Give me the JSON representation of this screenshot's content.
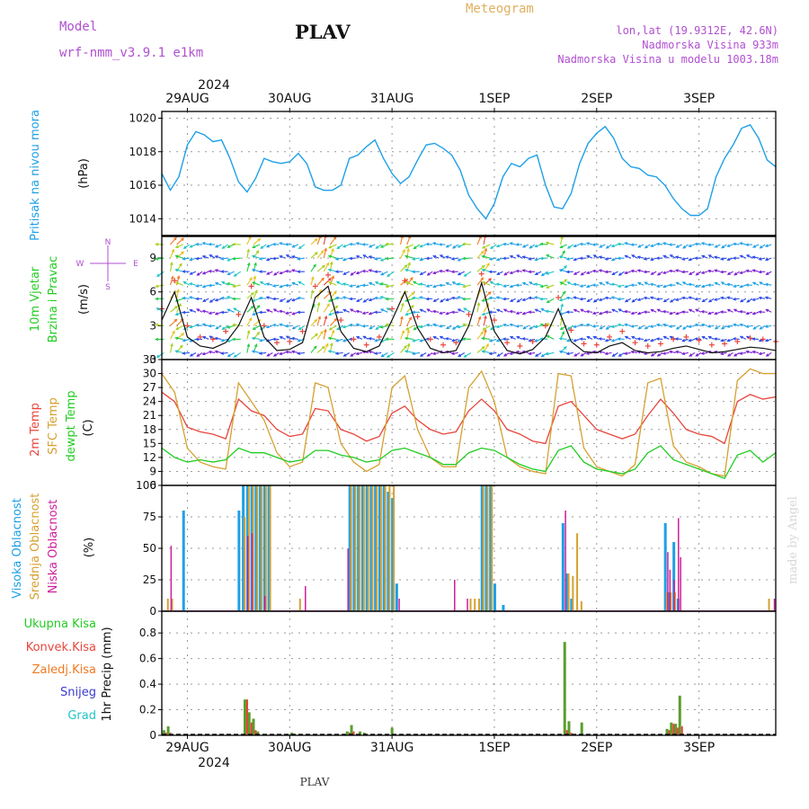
{
  "header": {
    "model_label": "Model",
    "model_name": "wrf-nmm_v3.9.1  e1km",
    "station": "PLAV",
    "meteogram": "Meteogram",
    "lonlat": "lon,lat (19.9312E, 42.6N)",
    "elevation": "Nadmorska Visina 933m",
    "model_elevation": "Nadmorska Visina u modelu 1003.18m",
    "year_top": "2024",
    "year_bottom": "2024",
    "footer_station": "PLAV",
    "credit": "made by Angel"
  },
  "colors": {
    "pressure": "#1ea0e6",
    "temp2m": "#e8453c",
    "sfc": "#d6a030",
    "dewpt": "#22cc22",
    "high_cloud": "#1ea0e6",
    "mid_cloud": "#d6a030",
    "low_cloud": "#cc1f99",
    "total_precip": "#5a9e2c",
    "conv_precip": "#e8453c",
    "frozen": "#f07a20",
    "snow": "#3a3ad0",
    "hail": "#22c4c4",
    "wind_mean": "#111111"
  },
  "chart_data": [
    {
      "type": "line",
      "panel": "pressure",
      "ylabel_left": "Pritisak na nivou mora",
      "ylabel_unit": "(hPa)",
      "categories": [
        "29AUG",
        "30AUG",
        "31AUG",
        "1SEP",
        "2SEP",
        "3SEP"
      ],
      "ylim": [
        1013,
        1020.4
      ],
      "yticks": [
        "1014",
        "1016",
        "1018",
        "1020"
      ],
      "x_range_hours": [
        0,
        144
      ],
      "series": [
        {
          "x": [
            0,
            2,
            4,
            6,
            8,
            10,
            12,
            14,
            16,
            18,
            20,
            22,
            24,
            26,
            28,
            30,
            32,
            34,
            36,
            38,
            40,
            42,
            44,
            46,
            48,
            50,
            52,
            54,
            56,
            58,
            60,
            62,
            64,
            66,
            68,
            70,
            72,
            74,
            76,
            78,
            80,
            82,
            84,
            86,
            88,
            90,
            92,
            94,
            96,
            98,
            100,
            102,
            104,
            106,
            108,
            110,
            112,
            114,
            116,
            118,
            120,
            122,
            124,
            126,
            128,
            130,
            132,
            134,
            136,
            138,
            140,
            142,
            144
          ],
          "values": [
            1016.7,
            1015.7,
            1016.5,
            1018.4,
            1019.2,
            1019.0,
            1018.6,
            1018.7,
            1017.6,
            1016.2,
            1015.6,
            1016.4,
            1017.6,
            1017.4,
            1017.3,
            1017.4,
            1017.9,
            1017.3,
            1015.9,
            1015.7,
            1015.7,
            1016.0,
            1017.6,
            1017.8,
            1018.3,
            1018.7,
            1017.6,
            1016.7,
            1016.1,
            1016.5,
            1017.5,
            1018.4,
            1018.5,
            1018.2,
            1017.8,
            1016.9,
            1015.4,
            1014.6,
            1014.0,
            1014.9,
            1016.5,
            1017.3,
            1017.1,
            1017.6,
            1017.8,
            1016.0,
            1014.7,
            1014.6,
            1015.5,
            1017.3,
            1018.5,
            1019.1,
            1019.5,
            1018.8,
            1017.6,
            1017.1,
            1017.0,
            1016.6,
            1016.5,
            1016.0,
            1015.2,
            1014.6,
            1014.2,
            1014.2,
            1014.6,
            1016.5,
            1017.6,
            1018.4,
            1019.4,
            1019.6,
            1018.8,
            1017.5,
            1017.1
          ]
        }
      ]
    },
    {
      "type": "line",
      "panel": "wind",
      "ylabel_left": "10m Vjetar",
      "ylabel_left2": "Brzina i Pravac",
      "ylabel_unit": "(m/s)",
      "compass": {
        "n": "N",
        "s": "S",
        "e": "E",
        "w": "W"
      },
      "ylim": [
        0,
        11
      ],
      "yticks": [
        "0",
        "3",
        "6",
        "9"
      ],
      "x_range_hours": [
        0,
        144
      ],
      "series": [
        {
          "name": "mean",
          "x": [
            0,
            3,
            6,
            9,
            12,
            15,
            18,
            21,
            24,
            27,
            30,
            33,
            36,
            39,
            42,
            45,
            48,
            51,
            54,
            57,
            60,
            63,
            66,
            69,
            72,
            75,
            78,
            81,
            84,
            87,
            90,
            93,
            96,
            99,
            102,
            105,
            108,
            111,
            114,
            117,
            120,
            123,
            126,
            129,
            132,
            135,
            138,
            141,
            144
          ],
          "values": [
            3.5,
            6.0,
            2.0,
            1.2,
            1.0,
            1.5,
            3.0,
            5.5,
            2.0,
            0.8,
            0.9,
            1.5,
            5.5,
            6.5,
            2.5,
            1.0,
            0.7,
            1.2,
            3.5,
            6.0,
            2.8,
            1.0,
            0.6,
            0.8,
            3.0,
            6.8,
            2.5,
            0.8,
            0.5,
            0.9,
            2.0,
            4.5,
            1.6,
            0.7,
            0.6,
            1.2,
            1.5,
            0.8,
            0.6,
            0.7,
            1.0,
            1.2,
            0.9,
            0.6,
            0.7,
            0.9,
            1.1,
            1.0,
            0.8
          ],
          "gust": [
            4.5,
            7.0,
            3.0,
            2.0,
            1.8,
            2.5,
            4.0,
            6.5,
            3.0,
            1.5,
            1.6,
            2.5,
            6.5,
            7.5,
            3.5,
            1.8,
            1.3,
            2.0,
            4.5,
            7.0,
            3.8,
            1.8,
            1.3,
            1.5,
            4.0,
            7.6,
            3.5,
            1.5,
            1.2,
            1.6,
            3.0,
            5.5,
            2.6,
            1.4,
            1.3,
            2.0,
            2.5,
            1.5,
            1.2,
            1.4,
            1.8,
            2.0,
            1.7,
            1.3,
            1.4,
            1.6,
            1.9,
            1.8,
            1.6
          ]
        }
      ]
    },
    {
      "type": "line",
      "panel": "temperature",
      "ylabel_left": "2m Temp",
      "ylabel_left2": "SFC Temp",
      "ylabel_left3": "dewpt Temp",
      "ylabel_unit": "(C)",
      "ylim": [
        6,
        33
      ],
      "yticks": [
        "6",
        "9",
        "12",
        "15",
        "18",
        "21",
        "24",
        "27",
        "30",
        "33"
      ],
      "x_range_hours": [
        0,
        144
      ],
      "x": [
        0,
        3,
        6,
        9,
        12,
        15,
        18,
        21,
        24,
        27,
        30,
        33,
        36,
        39,
        42,
        45,
        48,
        51,
        54,
        57,
        60,
        63,
        66,
        69,
        72,
        75,
        78,
        81,
        84,
        87,
        90,
        93,
        96,
        99,
        102,
        105,
        108,
        111,
        114,
        117,
        120,
        123,
        126,
        129,
        132,
        135,
        138,
        141,
        144
      ],
      "series": [
        {
          "name": "2m Temp",
          "values": [
            26.0,
            24.0,
            18.5,
            17.5,
            17.0,
            16.0,
            24.5,
            22.0,
            21.0,
            18.0,
            16.5,
            17.0,
            22.5,
            22.0,
            18.0,
            17.0,
            15.5,
            16.5,
            21.5,
            23.0,
            20.0,
            18.0,
            17.0,
            17.5,
            22.0,
            24.5,
            22.0,
            18.0,
            17.0,
            15.5,
            15.0,
            23.0,
            24.0,
            21.0,
            18.0,
            17.0,
            16.0,
            17.0,
            21.0,
            24.5,
            21.5,
            18.0,
            17.0,
            16.5,
            15.0,
            24.0,
            25.5,
            24.5,
            25.0
          ]
        },
        {
          "name": "SFC Temp",
          "values": [
            30.0,
            26.0,
            14.0,
            11.0,
            10.0,
            9.5,
            28.0,
            24.0,
            20.0,
            13.0,
            10.0,
            11.0,
            28.0,
            27.0,
            15.0,
            11.0,
            9.0,
            10.5,
            27.0,
            29.5,
            18.0,
            12.0,
            10.0,
            10.0,
            27.0,
            30.5,
            24.0,
            12.0,
            10.0,
            9.0,
            8.5,
            30.0,
            29.5,
            14.0,
            10.0,
            9.0,
            8.0,
            10.5,
            28.0,
            29.0,
            14.5,
            11.0,
            10.0,
            8.5,
            8.0,
            28.5,
            31.0,
            30.0,
            30.0
          ]
        },
        {
          "name": "dewpt Temp",
          "values": [
            14.0,
            12.0,
            11.0,
            11.5,
            11.0,
            11.5,
            14.0,
            13.0,
            13.0,
            12.0,
            11.0,
            11.5,
            13.5,
            13.5,
            12.5,
            12.0,
            11.0,
            11.5,
            13.5,
            14.0,
            13.0,
            12.0,
            10.5,
            10.5,
            13.0,
            14.0,
            13.5,
            12.0,
            10.5,
            9.5,
            9.0,
            13.5,
            14.5,
            11.0,
            9.5,
            9.0,
            8.5,
            9.5,
            13.0,
            14.5,
            11.5,
            10.5,
            9.5,
            8.5,
            7.5,
            12.5,
            13.5,
            11.0,
            13.0
          ]
        }
      ]
    },
    {
      "type": "bar",
      "panel": "cloud",
      "ylabel_left": "Visoka Oblacnost",
      "ylabel_left2": "Srednja Oblacnost",
      "ylabel_left3": "Niska Oblacnost",
      "ylabel_unit": "(%)",
      "ylim": [
        0,
        100
      ],
      "yticks": [
        "0",
        "25",
        "50",
        "75",
        "100"
      ],
      "x_range_hours": [
        0,
        144
      ],
      "series": [
        {
          "name": "Visoka Oblacnost",
          "x": [
            5,
            18,
            19,
            20,
            21,
            22,
            23,
            24,
            25,
            44,
            45,
            46,
            47,
            48,
            49,
            50,
            51,
            52,
            53,
            54,
            55,
            75,
            76,
            77,
            78,
            80,
            94,
            95,
            96,
            118,
            119,
            120,
            121
          ],
          "values": [
            80,
            80,
            100,
            100,
            100,
            100,
            100,
            100,
            100,
            100,
            100,
            100,
            100,
            100,
            100,
            100,
            100,
            100,
            95,
            90,
            22,
            100,
            100,
            100,
            22,
            5,
            70,
            30,
            10,
            70,
            15,
            55,
            10
          ]
        },
        {
          "name": "Srednja Oblacnost",
          "x": [
            1,
            2,
            19,
            20,
            21,
            22,
            23,
            24,
            25,
            32,
            44,
            45,
            46,
            47,
            48,
            49,
            50,
            51,
            52,
            53,
            54,
            72,
            73,
            74,
            75,
            76,
            77,
            95,
            96,
            97,
            98,
            118,
            119,
            120,
            142
          ],
          "values": [
            10,
            10,
            75,
            100,
            100,
            100,
            100,
            100,
            100,
            10,
            100,
            100,
            100,
            100,
            100,
            100,
            100,
            100,
            100,
            100,
            100,
            10,
            10,
            10,
            100,
            100,
            100,
            30,
            28,
            62,
            8,
            15,
            15,
            15,
            10
          ]
        },
        {
          "name": "Niska Oblacnost",
          "x": [
            1.5,
            19.5,
            20.5,
            23.5,
            33,
            43,
            55,
            68,
            71,
            94,
            118,
            118.5,
            119.5,
            120.5,
            121,
            143
          ],
          "values": [
            52,
            60,
            62,
            12,
            20,
            50,
            10,
            25,
            10,
            80,
            47,
            33,
            25,
            74,
            43,
            10
          ]
        }
      ]
    },
    {
      "type": "bar",
      "panel": "precip",
      "ylabel_left": "Ukupna Kisa",
      "ylabel_left2": "Konvek.Kisa",
      "ylabel_left3": "Zaledj.Kisa",
      "ylabel_left4": "Snijeg",
      "ylabel_left5": "Grad",
      "ylabel_unit": "1hr Precip (mm)",
      "ylim": [
        0,
        0.97
      ],
      "yticks": [
        "0",
        "0.2",
        "0.4",
        "0.6",
        "0.8"
      ],
      "x_range_hours": [
        0,
        144
      ],
      "series": [
        {
          "name": "Ukupna Kisa",
          "x": [
            0.5,
            1.5,
            19.5,
            20.5,
            21.5,
            22.5,
            30.5,
            43.5,
            44.5,
            46.5,
            47.5,
            54,
            94.5,
            95.5,
            98.5,
            118.5,
            119.5,
            120.5,
            121.5
          ],
          "values": [
            0.04,
            0.07,
            0.28,
            0.18,
            0.13,
            0.03,
            0.02,
            0.03,
            0.08,
            0.03,
            0.02,
            0.06,
            0.73,
            0.11,
            0.1,
            0.05,
            0.1,
            0.09,
            0.31
          ]
        },
        {
          "name": "Konvek.Kisa",
          "x": [
            0.5,
            1.5,
            19.5,
            20.5,
            21.5,
            43.5,
            44.5,
            94.5,
            95.5,
            118.5,
            119.5,
            120.5,
            121.5
          ],
          "values": [
            0.02,
            0.02,
            0.28,
            0.1,
            0.04,
            0.02,
            0.03,
            0.04,
            0.02,
            0.04,
            0.09,
            0.06,
            0.07
          ]
        }
      ]
    }
  ]
}
